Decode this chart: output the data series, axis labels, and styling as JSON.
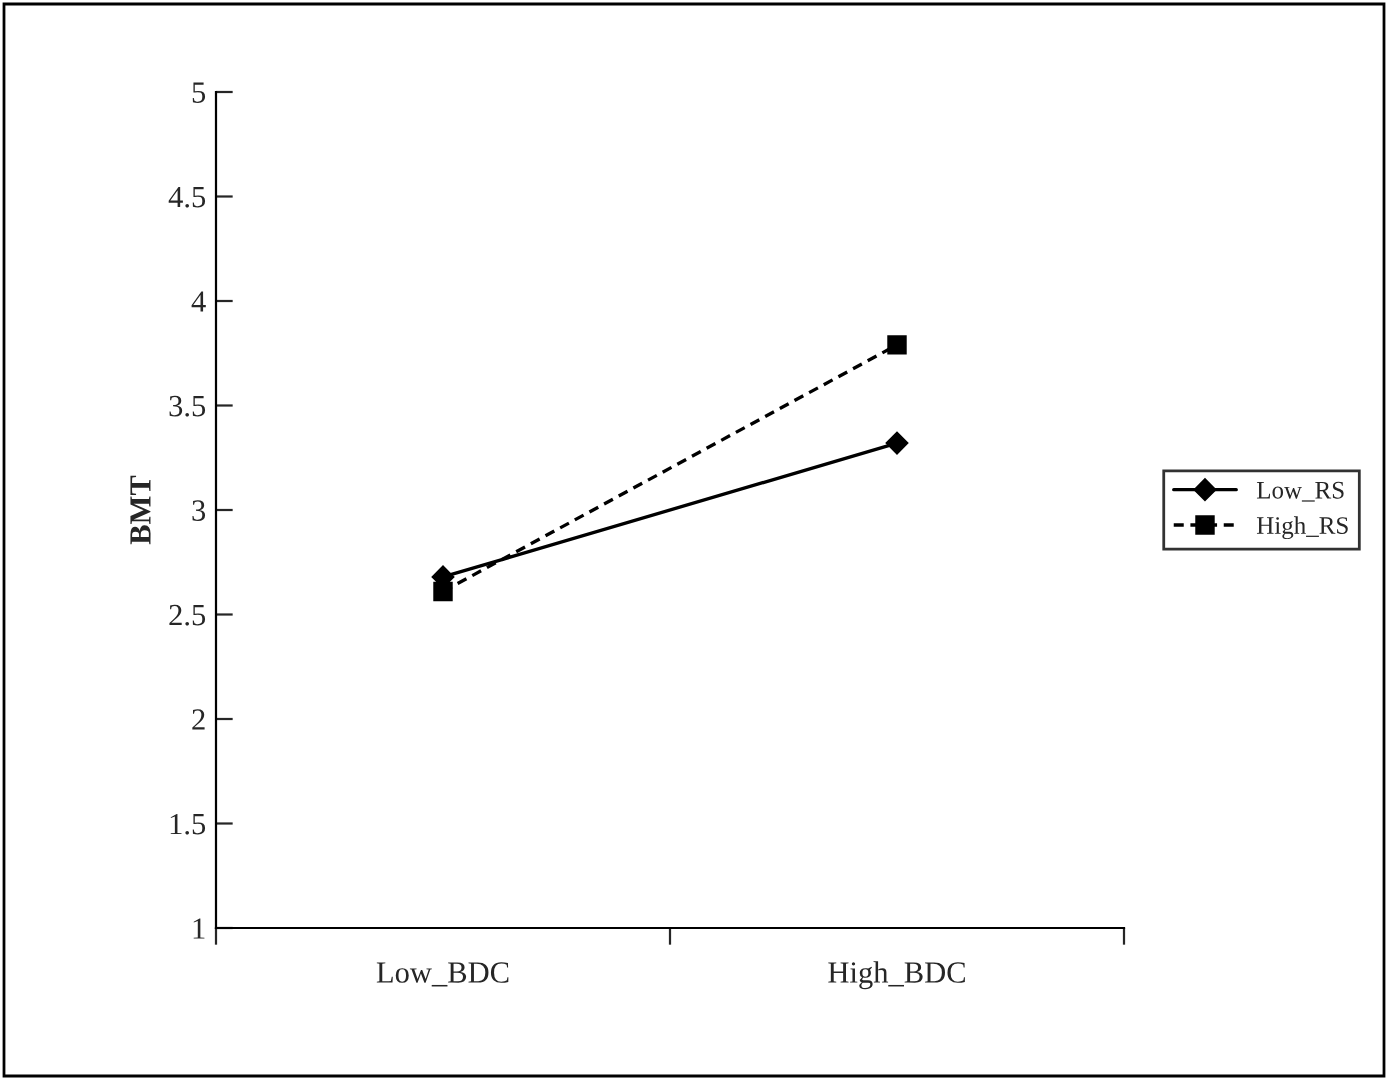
{
  "chart_data": {
    "type": "line",
    "ylabel": "BMT",
    "categories": [
      "Low_BDC",
      "High_BDC"
    ],
    "series": [
      {
        "name": "Low_RS",
        "color": "#000000",
        "values": [
          2.68,
          3.32
        ],
        "marker": "diamond",
        "line_style": "solid"
      },
      {
        "name": "High_RS",
        "color": "#000000",
        "values": [
          2.61,
          3.79
        ],
        "marker": "square",
        "line_style": "dashed"
      }
    ],
    "ylim": [
      1,
      5
    ],
    "yticks": [
      1,
      1.5,
      2,
      2.5,
      3,
      3.5,
      4,
      4.5,
      5
    ],
    "grid": false,
    "legend": "right"
  }
}
